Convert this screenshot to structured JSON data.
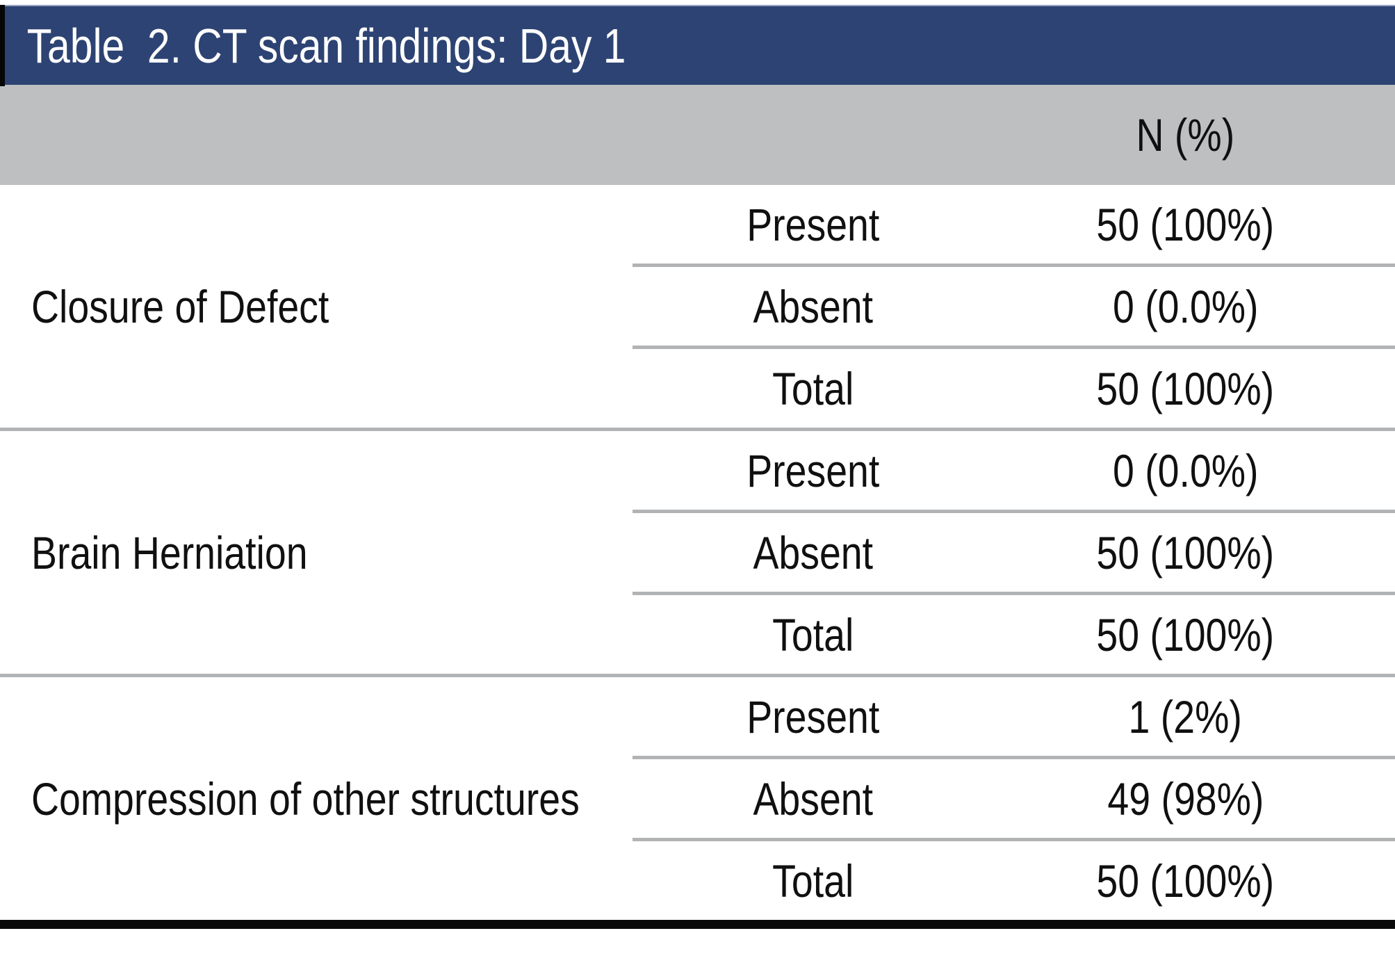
{
  "table": {
    "title": "Table  2. CT scan findings: Day 1",
    "column_header": "N (%)",
    "sections": [
      {
        "label": "Closure of Defect",
        "rows": [
          [
            "Present",
            "50 (100%)"
          ],
          [
            "Absent",
            "0 (0.0%)"
          ],
          [
            "Total",
            "50 (100%)"
          ]
        ]
      },
      {
        "label": "Brain Herniation",
        "rows": [
          [
            "Present",
            "0 (0.0%)"
          ],
          [
            "Absent",
            "50 (100%)"
          ],
          [
            "Total",
            "50 (100%)"
          ]
        ]
      },
      {
        "label": "Compression of other structures",
        "rows": [
          [
            "Present",
            "1 (2%)"
          ],
          [
            "Absent",
            "49 (98%)"
          ],
          [
            "Total",
            "50 (100%)"
          ]
        ]
      }
    ],
    "colors": {
      "header_blue": "#2d4373",
      "header_gray": "#bdbfc1",
      "divider_gray": "#b1b3b5",
      "bottom_bar_black": "#0b0b0b",
      "title_text": "#ffffff"
    }
  }
}
